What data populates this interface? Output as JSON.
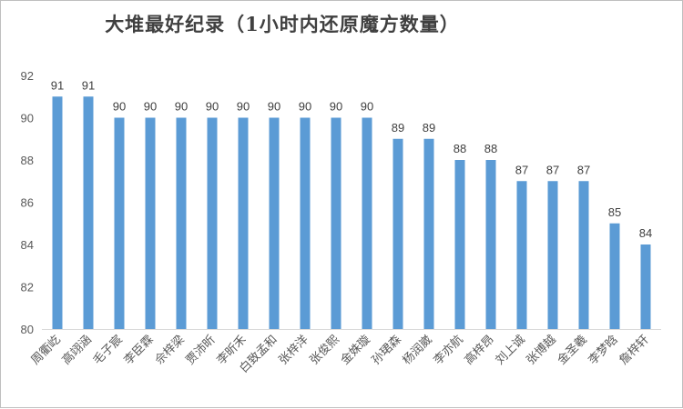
{
  "chart_data": {
    "type": "bar",
    "title": "大堆最好纪录（1小时内还原魔方数量）",
    "xlabel": "",
    "ylabel": "",
    "ylim": [
      80,
      92
    ],
    "yticks": [
      80,
      82,
      84,
      86,
      88,
      90,
      92
    ],
    "grid": false,
    "legend": "none",
    "bar_color": "#5b9bd5",
    "categories": [
      "周衢屹",
      "高翊涵",
      "毛子宸",
      "李臣霖",
      "佘梓梁",
      "贾沛昕",
      "李昕禾",
      "白致孟和",
      "张梓洋",
      "张俊熙",
      "金姝璇",
      "孙珺森",
      "杨润崴",
      "李亦航",
      "高梓昂",
      "刘上诚",
      "张博越",
      "金圣羲",
      "李梦晗",
      "詹梓轩"
    ],
    "values": [
      91,
      91,
      90,
      90,
      90,
      90,
      90,
      90,
      90,
      90,
      90,
      89,
      89,
      88,
      88,
      87,
      87,
      87,
      85,
      84
    ]
  }
}
